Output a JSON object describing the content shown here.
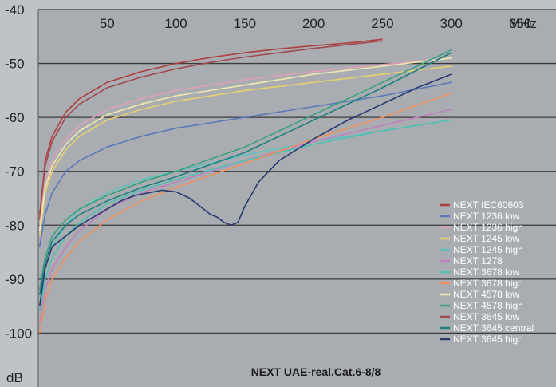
{
  "chart_data": {
    "type": "line",
    "title": "NEXT UAE-real.Cat.6-8/8",
    "x_unit_label": "MHz",
    "y_unit_label": "dB",
    "xlim": [
      0,
      350
    ],
    "ylim": [
      -110,
      -40
    ],
    "x_ticks": [
      "50",
      "100",
      "150",
      "200",
      "250",
      "300",
      "350"
    ],
    "y_ticks": [
      "-40",
      "-50",
      "-60",
      "-70",
      "-80",
      "-90",
      "-100"
    ],
    "y_tick_values": [
      -40,
      -50,
      -60,
      -70,
      -80,
      -90,
      -100
    ],
    "x_tick_values": [
      50,
      100,
      150,
      200,
      250,
      300,
      350
    ],
    "grid": "horizontal",
    "legend_position": "bottom-right",
    "series": [
      {
        "name": "NEXT IEC60603",
        "color": "#b04040",
        "x": [
          1,
          5,
          10,
          20,
          30,
          50,
          75,
          100,
          125,
          150,
          175,
          200,
          225,
          250
        ],
        "y": [
          -79,
          -68,
          -63.5,
          -59,
          -56.5,
          -53.5,
          -51.5,
          -50,
          -48.9,
          -48,
          -47.3,
          -46.7,
          -46.2,
          -45.5
        ]
      },
      {
        "name": "NEXT 1236 low",
        "color": "#5a7ab8",
        "x": [
          1,
          5,
          10,
          20,
          30,
          50,
          75,
          100,
          150,
          200,
          250,
          300
        ],
        "y": [
          -84,
          -78,
          -74,
          -70,
          -68,
          -65.5,
          -63.5,
          -62,
          -60,
          -58,
          -56,
          -53.5
        ]
      },
      {
        "name": "NEXT 1236 high",
        "color": "#e0a0b8",
        "x": [
          1,
          5,
          10,
          20,
          30,
          50,
          75,
          100,
          150,
          200,
          250,
          300
        ],
        "y": [
          -80,
          -72,
          -68,
          -64,
          -61.5,
          -58.5,
          -56.5,
          -55,
          -53,
          -51.5,
          -50.2,
          -49
        ]
      },
      {
        "name": "NEXT 1245 low",
        "color": "#e8d070",
        "x": [
          1,
          5,
          10,
          20,
          30,
          50,
          75,
          100,
          150,
          200,
          250,
          300
        ],
        "y": [
          -82,
          -74,
          -70,
          -66,
          -63.5,
          -60.5,
          -58.5,
          -57,
          -55,
          -53.5,
          -52,
          -50.5
        ]
      },
      {
        "name": "NEXT 1245 high",
        "color": "#60c0c0",
        "x": [
          1,
          5,
          10,
          20,
          30,
          50,
          75,
          100,
          150,
          200,
          250,
          300
        ],
        "y": [
          -95,
          -88,
          -84,
          -80,
          -77,
          -74,
          -71.5,
          -70,
          -67,
          -64.5,
          -62.5,
          -60.5
        ]
      },
      {
        "name": "NEXT 1278",
        "color": "#c080c0",
        "x": [
          1,
          5,
          10,
          20,
          30,
          50,
          75,
          100,
          150,
          200,
          250,
          300
        ],
        "y": [
          -98,
          -92,
          -88,
          -84,
          -81,
          -77,
          -74,
          -72,
          -68,
          -64.5,
          -61.5,
          -58.5
        ]
      },
      {
        "name": "NEXT 3678 low",
        "color": "#50c0b0",
        "x": [
          1,
          5,
          10,
          20,
          30,
          50,
          75,
          100,
          150,
          200,
          250,
          300
        ],
        "y": [
          -96,
          -90,
          -86,
          -82,
          -79.5,
          -76,
          -73.5,
          -71.5,
          -68,
          -65,
          -62.5,
          -60.5
        ]
      },
      {
        "name": "NEXT 3678 high",
        "color": "#f09060",
        "x": [
          1,
          5,
          10,
          20,
          30,
          50,
          75,
          100,
          150,
          200,
          250,
          300
        ],
        "y": [
          -100,
          -94,
          -90,
          -86,
          -83,
          -79,
          -75.5,
          -73,
          -68.5,
          -64,
          -60,
          -55.5
        ]
      },
      {
        "name": "NEXT 4578 low",
        "color": "#f0e8b0",
        "x": [
          1,
          5,
          10,
          20,
          30,
          50,
          75,
          100,
          150,
          200,
          250,
          300
        ],
        "y": [
          -81,
          -73,
          -69,
          -65,
          -62.5,
          -59.5,
          -57.5,
          -56,
          -54,
          -52,
          -50.5,
          -49
        ]
      },
      {
        "name": "NEXT 4578 high",
        "color": "#3aa080",
        "x": [
          1,
          5,
          10,
          20,
          30,
          50,
          75,
          100,
          150,
          200,
          250,
          300
        ],
        "y": [
          -92,
          -86,
          -82,
          -79,
          -77,
          -74.5,
          -72,
          -70,
          -65.5,
          -59.5,
          -53.5,
          -47.5
        ]
      },
      {
        "name": "NEXT 3645 low",
        "color": "#a04a50",
        "x": [
          1,
          5,
          10,
          20,
          30,
          50,
          75,
          100,
          125,
          150,
          175,
          200,
          225,
          250
        ],
        "y": [
          -78,
          -69,
          -64.5,
          -60,
          -57.5,
          -54.5,
          -52.5,
          -51,
          -49.8,
          -48.8,
          -48,
          -47.2,
          -46.5,
          -45.8
        ]
      },
      {
        "name": "NEXT 3645 central",
        "color": "#208080",
        "x": [
          1,
          5,
          10,
          20,
          30,
          50,
          75,
          100,
          150,
          200,
          250,
          300
        ],
        "y": [
          -93,
          -87,
          -83,
          -80,
          -78,
          -75.5,
          -73,
          -71,
          -66.5,
          -60.5,
          -54.5,
          -48
        ]
      },
      {
        "name": "NEXT 3645 high",
        "color": "#283a70",
        "x": [
          1,
          5,
          10,
          20,
          30,
          40,
          50,
          60,
          70,
          80,
          90,
          100,
          110,
          115,
          120,
          125,
          130,
          135,
          140,
          145,
          150,
          160,
          175,
          200,
          225,
          250,
          275,
          300
        ],
        "y": [
          -95,
          -88,
          -84,
          -82,
          -80,
          -78.5,
          -77,
          -75.5,
          -74.5,
          -74,
          -73.5,
          -73.8,
          -75,
          -76,
          -77,
          -78,
          -78.5,
          -79.5,
          -80,
          -79.5,
          -76.5,
          -72,
          -68,
          -64,
          -60.5,
          -57.5,
          -54.5,
          -52
        ]
      }
    ]
  }
}
